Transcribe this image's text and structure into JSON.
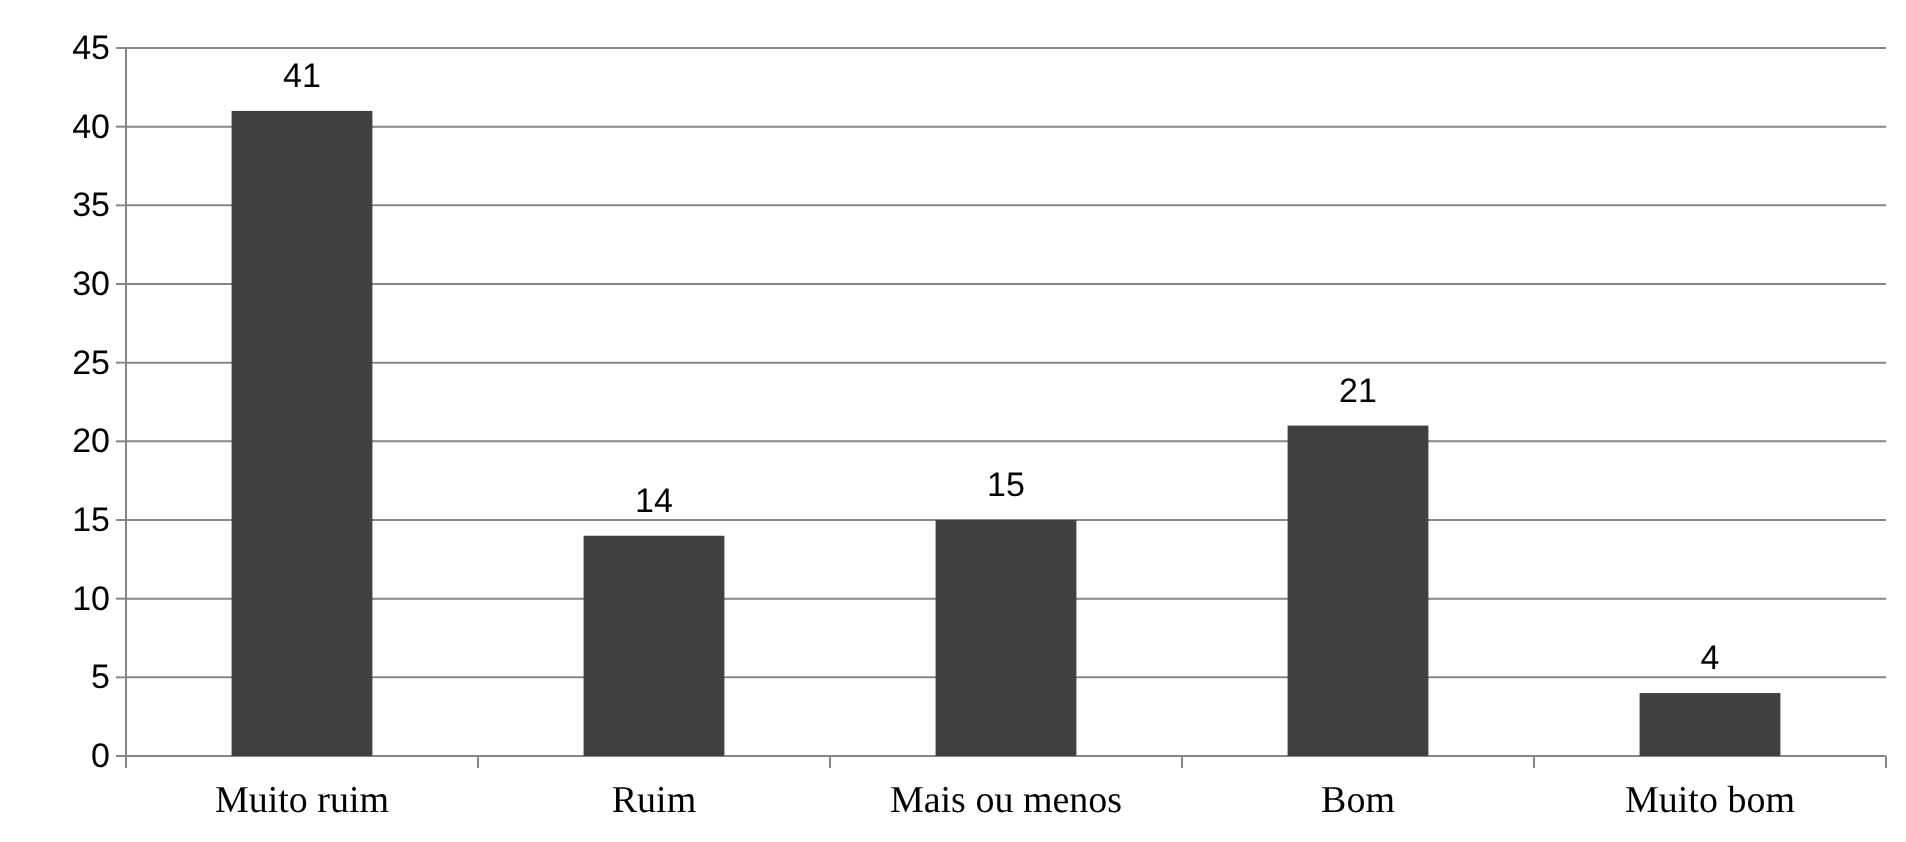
{
  "chart_data": {
    "type": "bar",
    "categories": [
      "Muito ruim",
      "Ruim",
      "Mais ou menos",
      "Bom",
      "Muito bom"
    ],
    "values": [
      41,
      14,
      15,
      21,
      4
    ],
    "color": "#404040",
    "ylim": [
      0,
      45
    ],
    "yticks": [
      0,
      5,
      10,
      15,
      20,
      25,
      30,
      35,
      40,
      45
    ],
    "grid": "y",
    "data_labels": true
  }
}
